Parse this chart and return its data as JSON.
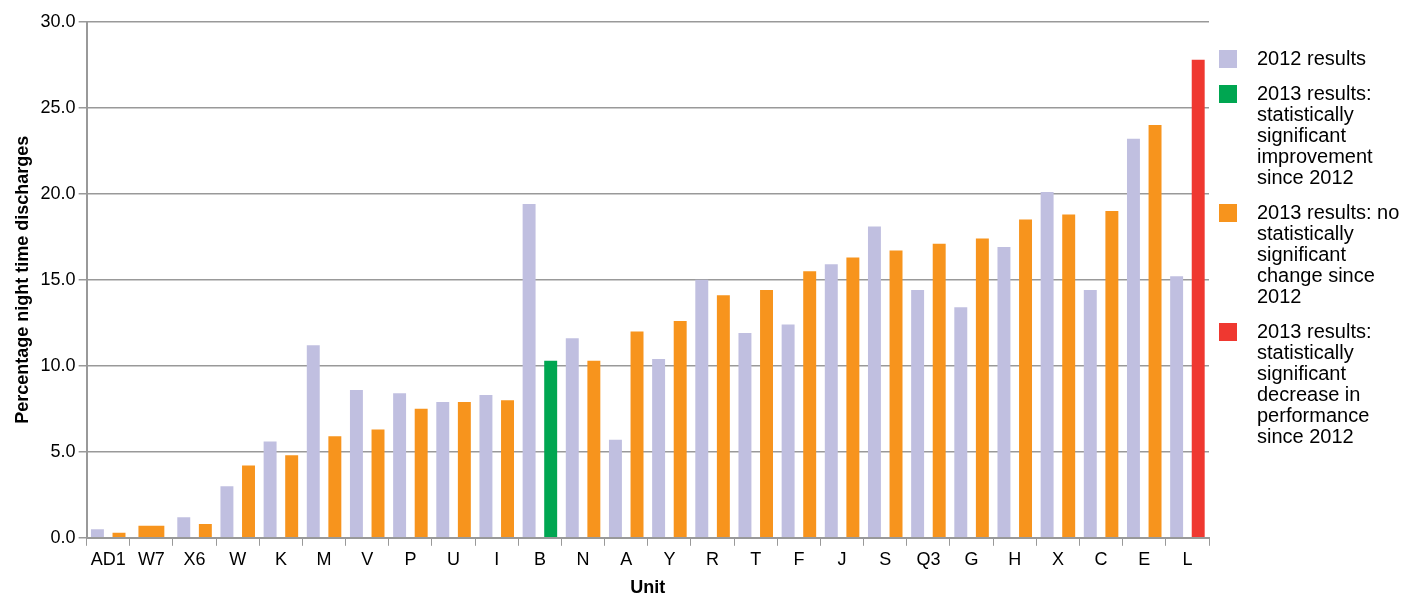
{
  "chart_data": {
    "type": "bar",
    "xlabel": "Unit",
    "ylabel": "Percentage night time discharges",
    "categories": [
      "AD1",
      "W7",
      "X6",
      "W",
      "K",
      "M",
      "V",
      "P",
      "U",
      "I",
      "B",
      "N",
      "A",
      "Y",
      "R",
      "T",
      "F",
      "J",
      "S",
      "Q3",
      "G",
      "H",
      "X",
      "C",
      "E",
      "L"
    ],
    "series": [
      {
        "name": "2012 results",
        "color": "#c0bfe0",
        "values": [
          0.5,
          null,
          1.2,
          3.0,
          5.6,
          11.2,
          8.6,
          8.4,
          7.9,
          8.3,
          19.4,
          11.6,
          5.7,
          10.4,
          15.0,
          11.9,
          12.4,
          15.9,
          18.1,
          14.4,
          13.4,
          16.9,
          20.1,
          14.4,
          23.2,
          15.2
        ]
      },
      {
        "name": "2013 results: statistically significant improvement since 2012",
        "color": "#00a651",
        "values": [
          null,
          null,
          null,
          null,
          null,
          null,
          null,
          null,
          null,
          null,
          10.3,
          null,
          null,
          null,
          null,
          null,
          null,
          null,
          null,
          null,
          null,
          null,
          null,
          null,
          null,
          null
        ]
      },
      {
        "name": "2013 results: no statistically significant change since 2012",
        "color": "#f7941d",
        "values": [
          0.3,
          0.7,
          0.8,
          4.2,
          4.8,
          5.9,
          6.3,
          7.5,
          7.9,
          8.0,
          null,
          10.3,
          12.0,
          12.6,
          14.1,
          14.4,
          15.5,
          16.3,
          16.7,
          17.1,
          17.4,
          18.5,
          18.8,
          19.0,
          24.0,
          null
        ]
      },
      {
        "name": "2013 results: statistically significant decrease in performance since 2012",
        "color": "#ef3830",
        "values": [
          null,
          null,
          null,
          null,
          null,
          null,
          null,
          null,
          null,
          null,
          null,
          null,
          null,
          null,
          null,
          null,
          null,
          null,
          null,
          null,
          null,
          null,
          null,
          null,
          null,
          27.8
        ]
      }
    ],
    "ylim": [
      0,
      30
    ],
    "yticks": [
      {
        "value": 0,
        "label": "0.0"
      },
      {
        "value": 5,
        "label": "5.0"
      },
      {
        "value": 10,
        "label": "10.0"
      },
      {
        "value": 15,
        "label": "15.0"
      },
      {
        "value": 20,
        "label": "20.0"
      },
      {
        "value": 25,
        "label": "25.0"
      },
      {
        "value": 30,
        "label": "30.0"
      }
    ],
    "grid": "y",
    "legend": "right"
  }
}
